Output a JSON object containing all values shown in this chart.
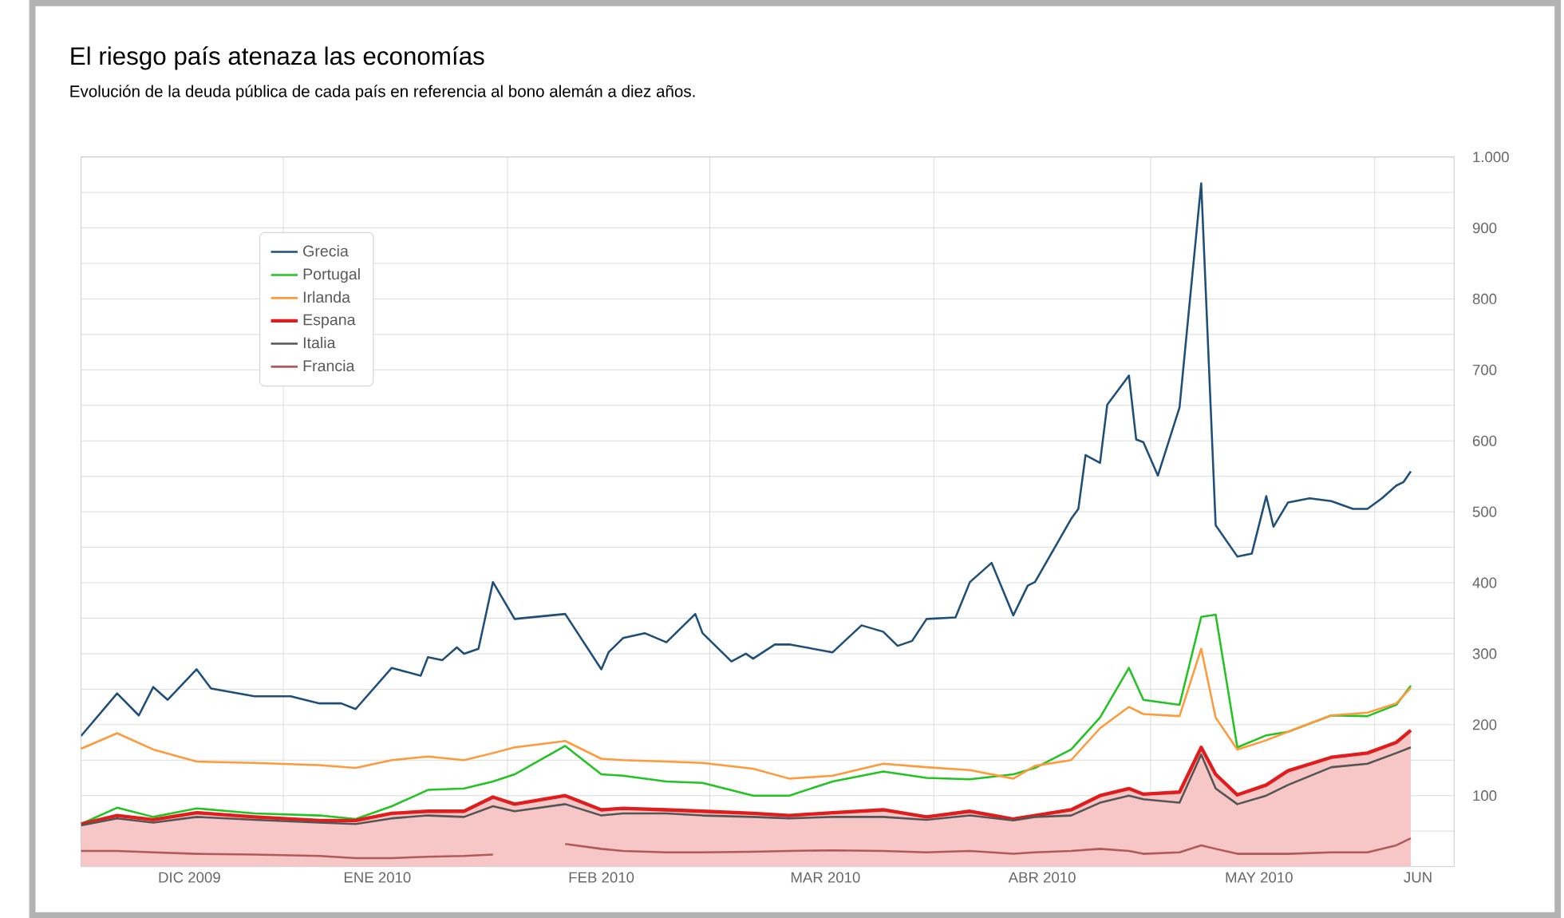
{
  "chart_data": {
    "type": "line",
    "title": "El riesgo país atenaza las economías",
    "subtitle": "Evolución de la deuda pública de cada país en referencia al bono alemán a diez años.",
    "x": [
      "2009-12-04",
      "2009-12-09",
      "2009-12-14",
      "2009-12-20",
      "2009-12-28",
      "2010-01-06",
      "2010-01-11",
      "2010-01-16",
      "2010-01-21",
      "2010-01-26",
      "2010-01-30",
      "2010-02-02",
      "2010-02-09",
      "2010-02-14",
      "2010-02-17",
      "2010-02-23",
      "2010-02-28",
      "2010-03-07",
      "2010-03-12",
      "2010-03-18",
      "2010-03-25",
      "2010-03-31",
      "2010-04-06",
      "2010-04-12",
      "2010-04-15",
      "2010-04-20",
      "2010-04-24",
      "2010-04-28",
      "2010-04-30",
      "2010-05-05",
      "2010-05-08",
      "2010-05-10",
      "2010-05-13",
      "2010-05-17",
      "2010-05-20",
      "2010-05-26",
      "2010-05-31",
      "2010-06-04",
      "2010-06-06"
    ],
    "series": [
      {
        "name": "Grecia",
        "color": "#1f4e79",
        "x": [
          "2009-12-04",
          "2009-12-09",
          "2009-12-12",
          "2009-12-14",
          "2009-12-16",
          "2009-12-20",
          "2009-12-22",
          "2009-12-28",
          "2010-01-02",
          "2010-01-06",
          "2010-01-09",
          "2010-01-11",
          "2010-01-16",
          "2010-01-20",
          "2010-01-21",
          "2010-01-23",
          "2010-01-25",
          "2010-01-26",
          "2010-01-28",
          "2010-01-30",
          "2010-02-02",
          "2010-02-09",
          "2010-02-14",
          "2010-02-15",
          "2010-02-17",
          "2010-02-20",
          "2010-02-23",
          "2010-02-27",
          "2010-02-28",
          "2010-03-04",
          "2010-03-06",
          "2010-03-07",
          "2010-03-10",
          "2010-03-12",
          "2010-03-18",
          "2010-03-22",
          "2010-03-25",
          "2010-03-27",
          "2010-03-29",
          "2010-03-31",
          "2010-04-04",
          "2010-04-06",
          "2010-04-09",
          "2010-04-12",
          "2010-04-14",
          "2010-04-15",
          "2010-04-20",
          "2010-04-21",
          "2010-04-22",
          "2010-04-24",
          "2010-04-25",
          "2010-04-28",
          "2010-04-29",
          "2010-04-30",
          "2010-05-02",
          "2010-05-05",
          "2010-05-08",
          "2010-05-10",
          "2010-05-13",
          "2010-05-15",
          "2010-05-17",
          "2010-05-18",
          "2010-05-20",
          "2010-05-23",
          "2010-05-26",
          "2010-05-29",
          "2010-05-31",
          "2010-06-02",
          "2010-06-04",
          "2010-06-05",
          "2010-06-06"
        ],
        "values": [
          184,
          244,
          213,
          253,
          235,
          278,
          251,
          240,
          240,
          230,
          230,
          222,
          280,
          269,
          295,
          291,
          309,
          300,
          307,
          401,
          349,
          356,
          278,
          302,
          322,
          329,
          316,
          356,
          329,
          289,
          300,
          293,
          313,
          313,
          302,
          340,
          331,
          311,
          318,
          349,
          351,
          401,
          428,
          354,
          396,
          401,
          490,
          504,
          580,
          569,
          651,
          692,
          602,
          598,
          551,
          647,
          963,
          481,
          437,
          441,
          522,
          479,
          513,
          519,
          515,
          504,
          504,
          519,
          537,
          542,
          557
        ]
      },
      {
        "name": "Portugal",
        "color": "#22c322",
        "values": [
          60,
          83,
          70,
          82,
          75,
          72,
          67,
          85,
          108,
          110,
          120,
          130,
          170,
          130,
          128,
          120,
          118,
          100,
          100,
          120,
          134,
          125,
          123,
          130,
          139,
          165,
          210,
          280,
          235,
          228,
          352,
          355,
          168,
          185,
          190,
          213,
          212,
          228,
          255
        ]
      },
      {
        "name": "Irlanda",
        "color": "#ff9a3c",
        "values": [
          166,
          188,
          165,
          148,
          146,
          143,
          139,
          150,
          155,
          150,
          160,
          168,
          177,
          152,
          150,
          148,
          146,
          138,
          124,
          128,
          145,
          140,
          136,
          124,
          142,
          150,
          195,
          225,
          215,
          212,
          307,
          210,
          165,
          178,
          190,
          213,
          217,
          230,
          252
        ]
      },
      {
        "name": "Espana",
        "color": "#e01c1c",
        "type": "area",
        "values": [
          60,
          72,
          66,
          76,
          70,
          65,
          65,
          75,
          78,
          78,
          98,
          88,
          100,
          80,
          82,
          80,
          78,
          75,
          72,
          76,
          80,
          70,
          78,
          67,
          72,
          80,
          100,
          110,
          102,
          105,
          168,
          130,
          101,
          115,
          135,
          154,
          160,
          175,
          192
        ]
      },
      {
        "name": "Italia",
        "color": "#555555",
        "values": [
          58,
          68,
          62,
          70,
          66,
          62,
          60,
          68,
          72,
          70,
          85,
          78,
          88,
          72,
          75,
          75,
          72,
          70,
          68,
          70,
          70,
          66,
          72,
          65,
          70,
          72,
          90,
          100,
          95,
          90,
          158,
          110,
          88,
          100,
          115,
          140,
          145,
          160,
          168
        ]
      },
      {
        "name": "Francia",
        "color": "#b05a5a",
        "values": [
          22,
          22,
          20,
          18,
          17,
          15,
          12,
          12,
          14,
          15,
          17,
          null,
          32,
          25,
          22,
          20,
          20,
          21,
          22,
          23,
          22,
          20,
          22,
          18,
          20,
          22,
          25,
          22,
          18,
          20,
          30,
          25,
          18,
          18,
          18,
          20,
          20,
          30,
          40
        ]
      }
    ],
    "xlim": [
      "2009-12-04",
      "2010-06-12"
    ],
    "xticks": [
      {
        "value": "2009-12-19",
        "label": "DIC 2009"
      },
      {
        "value": "2010-01-01",
        "label": null
      },
      {
        "value": "2010-01-14",
        "label": "ENE 2010"
      },
      {
        "value": "2010-02-01",
        "label": null
      },
      {
        "value": "2010-02-14",
        "label": "FEB 2010"
      },
      {
        "value": "2010-03-01",
        "label": null
      },
      {
        "value": "2010-03-17",
        "label": "MAR 2010"
      },
      {
        "value": "2010-04-01",
        "label": null
      },
      {
        "value": "2010-04-16",
        "label": "ABR 2010"
      },
      {
        "value": "2010-05-01",
        "label": null
      },
      {
        "value": "2010-05-16",
        "label": "MAY 2010"
      },
      {
        "value": "2010-06-01",
        "label": null
      },
      {
        "value": "2010-06-07",
        "label": "JUN"
      }
    ],
    "ylim": [
      0,
      1000
    ],
    "yticks": [
      {
        "value": 50,
        "label": null
      },
      100,
      {
        "value": 150,
        "label": null
      },
      200,
      {
        "value": 250,
        "label": null
      },
      300,
      {
        "value": 350,
        "label": null
      },
      400,
      {
        "value": 450,
        "label": null
      },
      500,
      {
        "value": 550,
        "label": null
      },
      600,
      {
        "value": 650,
        "label": null
      },
      700,
      {
        "value": 750,
        "label": null
      },
      800,
      {
        "value": 850,
        "label": null
      },
      900,
      {
        "value": 950,
        "label": null
      },
      {
        "value": 1000,
        "label": "1.000"
      }
    ],
    "grid": true,
    "legend": "top left",
    "marker": "none"
  }
}
